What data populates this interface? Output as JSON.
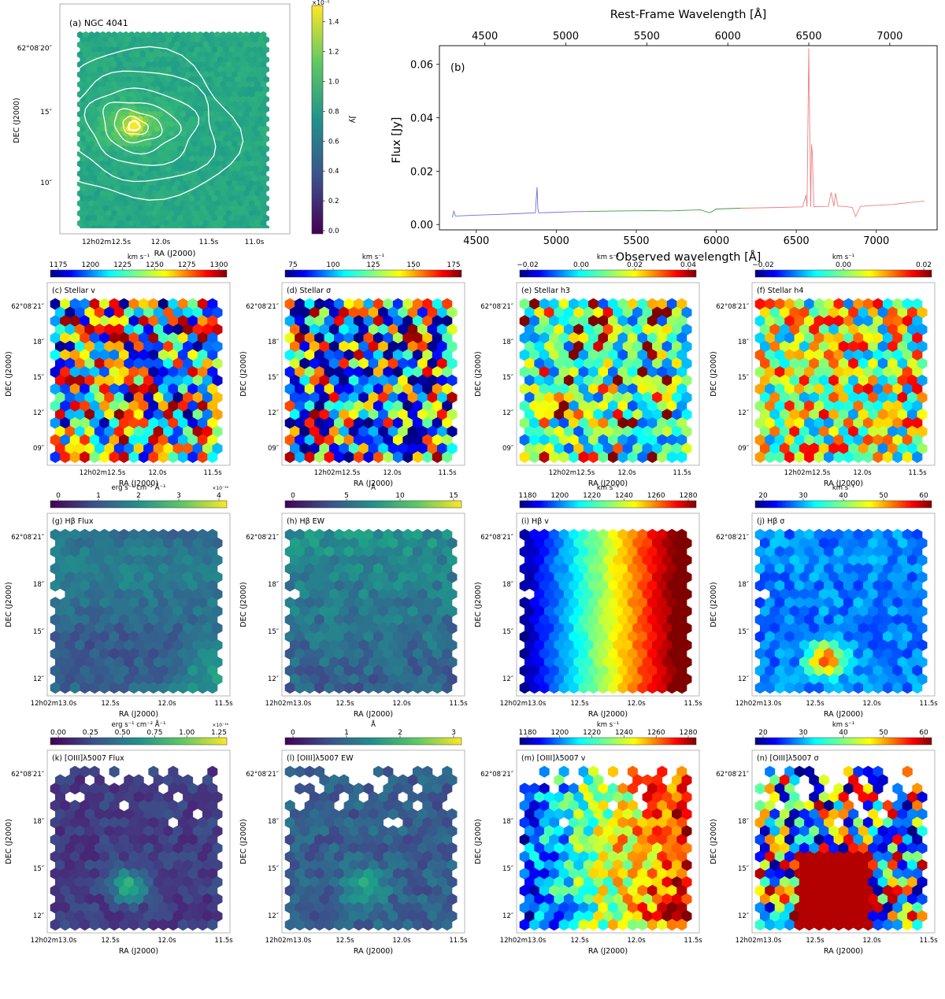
{
  "figure": {
    "panel_a": {
      "label": "(a) NGC 4041",
      "xlabel": "RA (J2000)",
      "ylabel": "DEC (J2000)",
      "xticks": [
        "12h02m12.5s",
        "12.0s",
        "11.5s",
        "11.0s"
      ],
      "yticks": [
        "62°08′20″",
        "15″",
        "10″"
      ],
      "colorbar_label": "Jy",
      "colorbar_exponent": "×10⁻⁵",
      "colorbar_ticks": [
        "1.4",
        "1.2",
        "1.0",
        "0.8",
        "0.6",
        "0.4",
        "0.2",
        "0.0"
      ],
      "colormap": "viridis"
    },
    "panels": [
      {
        "label": "(c) Stellar v",
        "cb_title": "km s⁻¹",
        "cb_ticks": [
          "1175",
          "1200",
          "1225",
          "1250",
          "1275",
          "1300"
        ],
        "cmap": "jet",
        "exp": "",
        "xticks": [
          "12h02m12.5s",
          "12.0s",
          "11.5s"
        ],
        "yticks": [
          "62°08′21″",
          "18″",
          "15″",
          "12″",
          "09″"
        ],
        "xlabel": "RA (J2000)",
        "ylabel": "DEC (J2000)"
      },
      {
        "label": "(d) Stellar σ",
        "cb_title": "km s⁻¹",
        "cb_ticks": [
          "75",
          "100",
          "125",
          "150",
          "175"
        ],
        "cmap": "jet",
        "exp": "",
        "xticks": [
          "12h02m12.5s",
          "12.0s",
          "11.5s"
        ],
        "yticks": [
          "62°08′21″",
          "18″",
          "15″",
          "12″",
          "09″"
        ],
        "xlabel": "RA (J2000)",
        "ylabel": "DEC (J2000)"
      },
      {
        "label": "(e) Stellar h3",
        "cb_title": "km s⁻¹",
        "cb_ticks": [
          "−0.02",
          "0.00",
          "0.02",
          "0.04"
        ],
        "cmap": "jet",
        "exp": "",
        "xticks": [
          "12h02m12.5s",
          "12.0s",
          "11.5s"
        ],
        "yticks": [
          "62°08′21″",
          "18″",
          "15″",
          "12″",
          "09″"
        ],
        "xlabel": "RA (J2000)",
        "ylabel": "DEC (J2000)"
      },
      {
        "label": "(f) Stellar h4",
        "cb_title": "km s⁻¹",
        "cb_ticks": [
          "−0.02",
          "0.00",
          "0.02"
        ],
        "cmap": "jet",
        "exp": "",
        "xticks": [
          "12h02m12.5s",
          "12.0s",
          "11.5s"
        ],
        "yticks": [
          "62°08′21″",
          "18″",
          "15″",
          "12″",
          "09″"
        ],
        "xlabel": "RA (J2000)",
        "ylabel": "DEC (J2000)"
      },
      {
        "label": "(g) Hβ Flux",
        "cb_title": "erg s⁻¹ cm⁻² Å⁻¹",
        "cb_ticks": [
          "0",
          "1",
          "2",
          "3",
          "4"
        ],
        "cmap": "viridis",
        "exp": "×10⁻¹⁶",
        "xticks": [
          "12h02m13.0s",
          "12.5s",
          "12.0s",
          "11.5s"
        ],
        "yticks": [
          "62°08′21″",
          "18″",
          "15″",
          "12″"
        ],
        "xlabel": "RA (J2000)",
        "ylabel": "DEC (J2000)"
      },
      {
        "label": "(h) Hβ EW",
        "cb_title": "Å",
        "cb_ticks": [
          "0",
          "5",
          "10",
          "15"
        ],
        "cmap": "viridis",
        "exp": "",
        "xticks": [
          "12h02m13.0s",
          "12.5s",
          "12.0s",
          "11.5s"
        ],
        "yticks": [
          "62°08′21″",
          "18″",
          "15″",
          "12″"
        ],
        "xlabel": "RA (J2000)",
        "ylabel": "DEC (J2000)"
      },
      {
        "label": "(i) Hβ v",
        "cb_title": "km s⁻¹",
        "cb_ticks": [
          "1180",
          "1200",
          "1220",
          "1240",
          "1260",
          "1280"
        ],
        "cmap": "jet",
        "exp": "",
        "xticks": [
          "12h02m13.0s",
          "12.5s",
          "12.0s",
          "11.5s"
        ],
        "yticks": [
          "62°08′21″",
          "18″",
          "15″",
          "12″"
        ],
        "xlabel": "RA (J2000)",
        "ylabel": "DEC (J2000)"
      },
      {
        "label": "(j) Hβ σ",
        "cb_title": "km s⁻¹",
        "cb_ticks": [
          "20",
          "30",
          "40",
          "50",
          "60"
        ],
        "cmap": "jet",
        "exp": "",
        "xticks": [
          "12h02m13.0s",
          "12.5s",
          "12.0s",
          "11.5s"
        ],
        "yticks": [
          "62°08′21″",
          "18″",
          "15″",
          "12″"
        ],
        "xlabel": "RA (J2000)",
        "ylabel": "DEC (J2000)"
      },
      {
        "label": "(k) [OIII]λ5007 Flux",
        "cb_title": "erg s⁻¹ cm⁻² Å⁻¹",
        "cb_ticks": [
          "0.00",
          "0.25",
          "0.50",
          "0.75",
          "1.00",
          "1.25"
        ],
        "cmap": "viridis",
        "exp": "×10⁻¹⁶",
        "xticks": [
          "12h02m13.0s",
          "12.5s",
          "12.0s",
          "11.5s"
        ],
        "yticks": [
          "62°08′21″",
          "18″",
          "15″",
          "12″"
        ],
        "xlabel": "RA (J2000)",
        "ylabel": "DEC (J2000)"
      },
      {
        "label": "(l) [OIII]λ5007 EW",
        "cb_title": "Å",
        "cb_ticks": [
          "0",
          "1",
          "2",
          "3"
        ],
        "cmap": "viridis",
        "exp": "",
        "xticks": [
          "12h02m13.0s",
          "12.5s",
          "12.0s",
          "11.5s"
        ],
        "yticks": [
          "62°08′21″",
          "18″",
          "15″",
          "12″"
        ],
        "xlabel": "RA (J2000)",
        "ylabel": "DEC (J2000)"
      },
      {
        "label": "(m) [OIII]λ5007 v",
        "cb_title": "km s⁻¹",
        "cb_ticks": [
          "1180",
          "1200",
          "1220",
          "1240",
          "1260",
          "1280"
        ],
        "cmap": "jet",
        "exp": "",
        "xticks": [
          "12h02m13.0s",
          "12.5s",
          "12.0s",
          "11.5s"
        ],
        "yticks": [
          "62°08′21″",
          "18″",
          "15″",
          "12″"
        ],
        "xlabel": "RA (J2000)",
        "ylabel": "DEC (J2000)"
      },
      {
        "label": "(n) [OIII]λ5007 σ",
        "cb_title": "km s⁻¹",
        "cb_ticks": [
          "20",
          "30",
          "40",
          "50",
          "60"
        ],
        "cmap": "jet",
        "exp": "",
        "xticks": [
          "12h02m13.0s",
          "12.5s",
          "12.0s",
          "11.5s"
        ],
        "yticks": [
          "62°08′21″",
          "18″",
          "15″",
          "12″"
        ],
        "xlabel": "RA (J2000)",
        "ylabel": "DEC (J2000)"
      }
    ]
  },
  "chart_data": [
    {
      "type": "heatmap",
      "title": "(a) NGC 4041",
      "xlabel": "RA (J2000)",
      "ylabel": "DEC (J2000)",
      "colorbar": "Jy",
      "clim": [
        0.0,
        1.5
      ]
    },
    {
      "type": "line",
      "title": "(b)",
      "xlabel": "Observed wavelength [Å]",
      "x2label": "Rest-Frame Wavelength [Å]",
      "ylabel": "Flux [Jy]",
      "xlim": [
        4270,
        7380
      ],
      "ylim": [
        -0.002,
        0.067
      ],
      "xticks": [
        4500,
        5000,
        5500,
        6000,
        6500,
        7000
      ],
      "x2ticks": [
        4500,
        5000,
        5500,
        6000,
        6500,
        7000
      ],
      "yticks": [
        0.0,
        0.02,
        0.04,
        0.06
      ],
      "series": [
        {
          "color": "#6f6fd9",
          "x": [
            4350,
            4360,
            4370,
            4500,
            4650,
            4800,
            4870,
            4875,
            4880,
            4885,
            4890,
            4950,
            5100,
            5200
          ],
          "y": [
            0.0026,
            0.005,
            0.0032,
            0.0035,
            0.0038,
            0.0042,
            0.0044,
            0.0095,
            0.014,
            0.006,
            0.0044,
            0.0045,
            0.0048,
            0.0049
          ]
        },
        {
          "color": "#3f9a3f",
          "x": [
            5200,
            5400,
            5600,
            5700,
            5800,
            5900,
            5960,
            6000,
            6150
          ],
          "y": [
            0.0049,
            0.0051,
            0.0052,
            0.0051,
            0.0053,
            0.0055,
            0.0044,
            0.0058,
            0.0061
          ]
        },
        {
          "color": "#f08080",
          "x": [
            6150,
            6400,
            6540,
            6560,
            6567,
            6578,
            6590,
            6595,
            6600,
            6610,
            6620,
            6700,
            6718,
            6735,
            6745,
            6760,
            6800,
            6850,
            6870,
            6885,
            6900,
            7000,
            7100,
            7200,
            7300
          ],
          "y": [
            0.0061,
            0.0064,
            0.0066,
            0.011,
            0.0066,
            0.066,
            0.0066,
            0.03,
            0.027,
            0.0066,
            0.0067,
            0.0068,
            0.012,
            0.0068,
            0.0118,
            0.0069,
            0.0068,
            0.0064,
            0.003,
            0.0048,
            0.0068,
            0.0072,
            0.0075,
            0.0082,
            0.0088
          ]
        }
      ]
    },
    {
      "type": "heatmap",
      "title": "(c) Stellar v",
      "colorbar": "km s⁻¹",
      "clim": [
        1165,
        1315
      ]
    },
    {
      "type": "heatmap",
      "title": "(d) Stellar σ",
      "colorbar": "km s⁻¹",
      "clim": [
        55,
        185
      ]
    },
    {
      "type": "heatmap",
      "title": "(e) Stellar h3",
      "colorbar": "km s⁻¹",
      "clim": [
        -0.035,
        0.05
      ]
    },
    {
      "type": "heatmap",
      "title": "(f) Stellar h4",
      "colorbar": "km s⁻¹",
      "clim": [
        -0.035,
        0.035
      ]
    },
    {
      "type": "heatmap",
      "title": "(g) Hβ Flux",
      "colorbar": "erg s⁻¹ cm⁻² Å⁻¹",
      "clim": [
        0,
        4.1
      ]
    },
    {
      "type": "heatmap",
      "title": "(h) Hβ EW",
      "colorbar": "Å",
      "clim": [
        0,
        17
      ]
    },
    {
      "type": "heatmap",
      "title": "(i) Hβ v",
      "colorbar": "km s⁻¹",
      "clim": [
        1175,
        1290
      ]
    },
    {
      "type": "heatmap",
      "title": "(j) Hβ σ",
      "colorbar": "km s⁻¹",
      "clim": [
        15,
        60
      ]
    },
    {
      "type": "heatmap",
      "title": "(k) [OIII]λ5007 Flux",
      "colorbar": "erg s⁻¹ cm⁻² Å⁻¹",
      "clim": [
        0,
        1.35
      ]
    },
    {
      "type": "heatmap",
      "title": "(l) [OIII]λ5007 EW",
      "colorbar": "Å",
      "clim": [
        0,
        3.8
      ]
    },
    {
      "type": "heatmap",
      "title": "(m) [OIII]λ5007 v",
      "colorbar": "km s⁻¹",
      "clim": [
        1175,
        1290
      ]
    },
    {
      "type": "heatmap",
      "title": "(n) [OIII]λ5007 σ",
      "colorbar": "km s⁻¹",
      "clim": [
        15,
        60
      ]
    }
  ]
}
